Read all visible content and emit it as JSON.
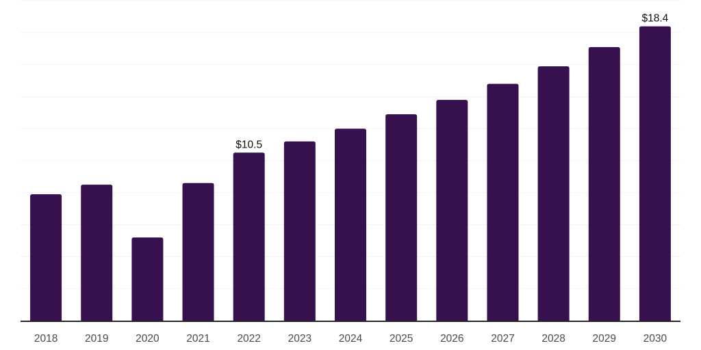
{
  "chart_data": {
    "type": "bar",
    "title": "",
    "xlabel": "",
    "ylabel": "",
    "categories": [
      "2018",
      "2019",
      "2020",
      "2021",
      "2022",
      "2023",
      "2024",
      "2025",
      "2026",
      "2027",
      "2028",
      "2029",
      "2030"
    ],
    "values": [
      7.9,
      8.5,
      5.2,
      8.6,
      10.5,
      11.2,
      12.0,
      12.9,
      13.8,
      14.8,
      15.9,
      17.1,
      18.4
    ],
    "bar_labels": [
      "",
      "",
      "",
      "",
      "$10.5",
      "",
      "",
      "",
      "",
      "",
      "",
      "",
      "$18.4"
    ],
    "ylim": [
      0,
      20
    ],
    "gridline_step": 2,
    "grid": "horizontal",
    "legend": "none",
    "y_axis_labels_visible": false,
    "colors": {
      "bar": "#37114E",
      "gridline": "#F2F2F2",
      "axis_line": "#262626",
      "tick_label": "#4A4A4A",
      "data_label": "#0D0D0D",
      "background": "#FFFFFF"
    }
  }
}
